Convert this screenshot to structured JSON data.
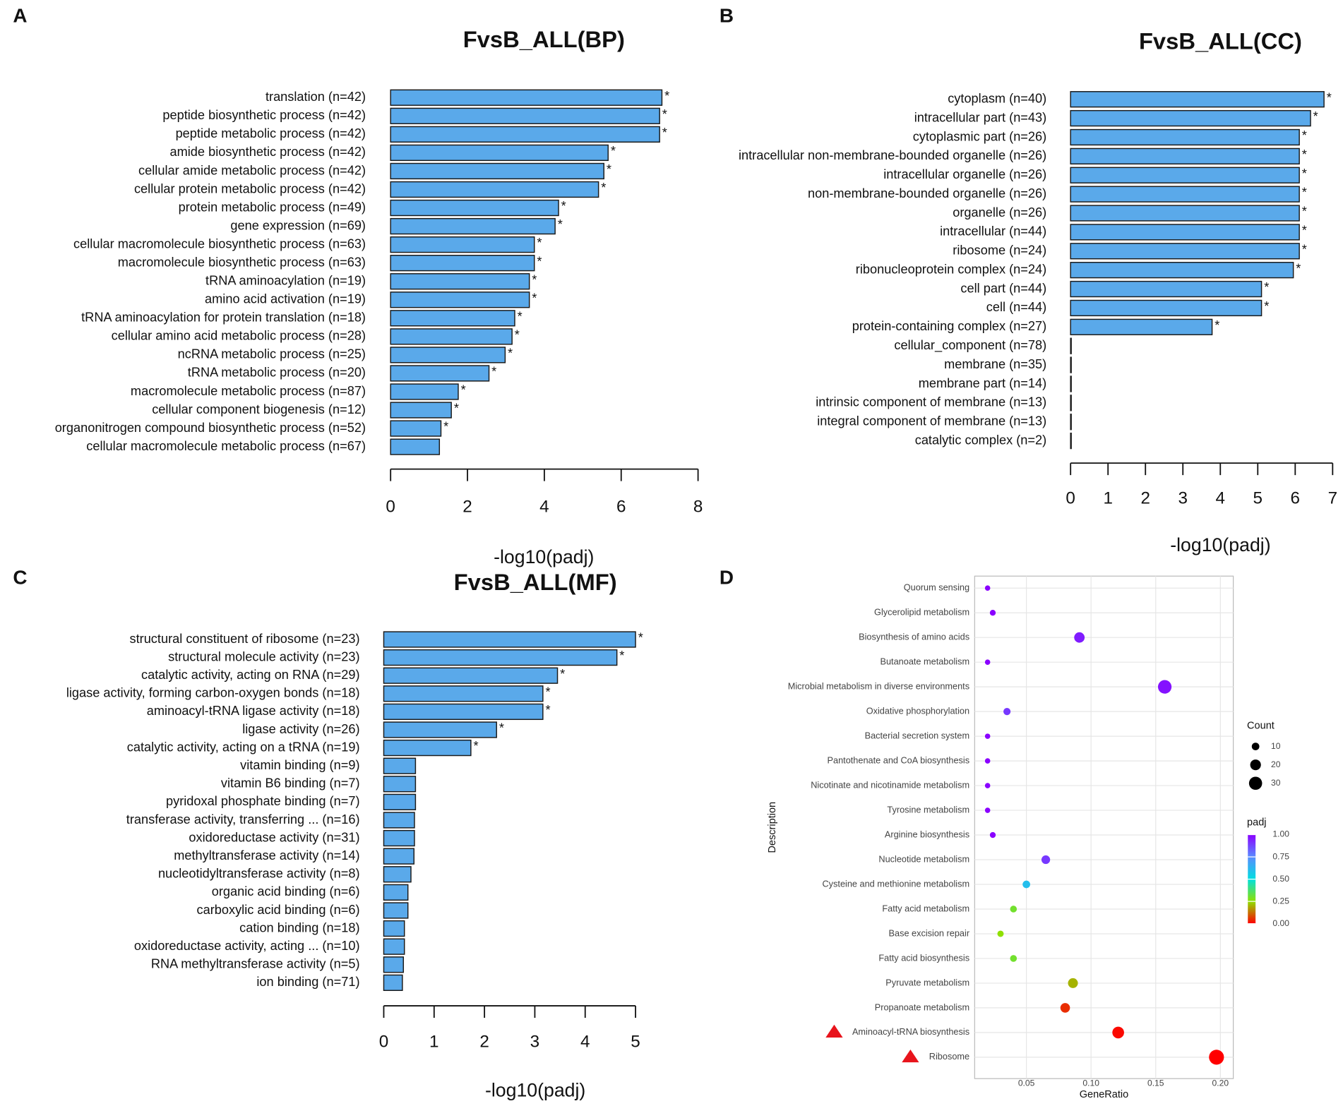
{
  "chart_data": [
    {
      "type": "bar",
      "orientation": "horizontal",
      "panel": "A",
      "title": "FvsB_ALL(BP)",
      "x_label": "-log10(padj)",
      "color": "#5aa9ea",
      "categories": [
        "translation (n=42)",
        "peptide biosynthetic process (n=42)",
        "peptide metabolic process (n=42)",
        "amide biosynthetic process (n=42)",
        "cellular amide metabolic process (n=42)",
        "cellular protein metabolic process (n=42)",
        "protein metabolic process (n=49)",
        "gene expression (n=69)",
        "cellular macromolecule biosynthetic process (n=63)",
        "macromolecule biosynthetic process (n=63)",
        "tRNA aminoacylation (n=19)",
        "amino acid activation (n=19)",
        "tRNA aminoacylation for protein translation (n=18)",
        "cellular amino acid metabolic process (n=28)",
        "ncRNA metabolic process (n=25)",
        "tRNA metabolic process (n=20)",
        "macromolecule metabolic process (n=87)",
        "cellular component biogenesis (n=12)",
        "organonitrogen compound biosynthetic process (n=52)",
        "cellular macromolecule metabolic process (n=67)"
      ],
      "values": [
        7.06,
        7.0,
        7.0,
        5.66,
        5.55,
        5.41,
        4.37,
        4.28,
        3.74,
        3.74,
        3.61,
        3.61,
        3.23,
        3.16,
        2.98,
        2.56,
        1.76,
        1.58,
        1.31,
        1.27
      ],
      "significance": [
        "*",
        "*",
        "*",
        "*",
        "*",
        "*",
        "*",
        "*",
        "*",
        "*",
        "*",
        "*",
        "*",
        "*",
        "*",
        "*",
        "*",
        "*",
        "*",
        null
      ],
      "xlim": [
        0,
        8
      ],
      "xticks": [
        0,
        2,
        4,
        6,
        8
      ]
    },
    {
      "type": "bar",
      "orientation": "horizontal",
      "panel": "B",
      "title": "FvsB_ALL(CC)",
      "x_label": "-log10(padj)",
      "color": "#5aa9ea",
      "categories": [
        "cytoplasm (n=40)",
        "intracellular part (n=43)",
        "cytoplasmic part (n=26)",
        "intracellular non-membrane-bounded organelle (n=26)",
        "intracellular organelle (n=26)",
        "non-membrane-bounded organelle (n=26)",
        "organelle (n=26)",
        "intracellular (n=44)",
        "ribosome (n=24)",
        "ribonucleoprotein complex (n=24)",
        "cell part (n=44)",
        "cell (n=44)",
        "protein-containing complex (n=27)",
        "cellular_component (n=78)",
        "membrane (n=35)",
        "membrane part (n=14)",
        "intrinsic component of membrane (n=13)",
        "integral component of membrane (n=13)",
        "catalytic complex (n=2)"
      ],
      "values": [
        6.77,
        6.41,
        6.11,
        6.11,
        6.11,
        6.11,
        6.11,
        6.11,
        6.11,
        5.95,
        5.1,
        5.1,
        3.78,
        0,
        0,
        0,
        0,
        0,
        0
      ],
      "significance": [
        "*",
        "*",
        "*",
        "*",
        "*",
        "*",
        "*",
        "*",
        "*",
        "*",
        "*",
        "*",
        "*",
        null,
        null,
        null,
        null,
        null,
        null
      ],
      "xlim": [
        0,
        7
      ],
      "xticks": [
        0,
        1,
        2,
        3,
        4,
        5,
        6,
        7
      ]
    },
    {
      "type": "bar",
      "orientation": "horizontal",
      "panel": "C",
      "title": "FvsB_ALL(MF)",
      "x_label": "-log10(padj)",
      "color": "#5aa9ea",
      "categories": [
        "structural constituent of ribosome (n=23)",
        "structural molecule activity (n=23)",
        "catalytic activity, acting on RNA (n=29)",
        "ligase activity, forming carbon-oxygen bonds (n=18)",
        "aminoacyl-tRNA ligase activity (n=18)",
        "ligase activity (n=26)",
        "catalytic activity, acting on a tRNA (n=19)",
        "vitamin binding (n=9)",
        "vitamin B6 binding (n=7)",
        "pyridoxal phosphate binding (n=7)",
        "transferase activity, transferring ... (n=16)",
        "oxidoreductase activity (n=31)",
        "methyltransferase activity (n=14)",
        "nucleotidyltransferase activity (n=8)",
        "organic acid binding (n=6)",
        "carboxylic acid binding (n=6)",
        "cation binding (n=18)",
        "oxidoreductase activity, acting ... (n=10)",
        "RNA methyltransferase activity (n=5)",
        "ion binding (n=71)"
      ],
      "values": [
        5.0,
        4.63,
        3.45,
        3.16,
        3.16,
        2.24,
        1.73,
        0.63,
        0.63,
        0.63,
        0.61,
        0.61,
        0.6,
        0.54,
        0.48,
        0.48,
        0.41,
        0.41,
        0.39,
        0.37
      ],
      "significance": [
        "*",
        "*",
        "*",
        "*",
        "*",
        "*",
        "*",
        null,
        null,
        null,
        null,
        null,
        null,
        null,
        null,
        null,
        null,
        null,
        null,
        null
      ],
      "xlim": [
        0,
        5
      ],
      "xticks": [
        0,
        1,
        2,
        3,
        4,
        5
      ]
    },
    {
      "type": "scatter",
      "panel": "D",
      "x_label": "GeneRatio",
      "y_label": "Description",
      "size_legend_title": "Count",
      "color_legend_title": "padj",
      "categories": [
        "Quorum sensing",
        "Glycerolipid metabolism",
        "Biosynthesis of amino acids",
        "Butanoate metabolism",
        "Microbial metabolism in diverse environments",
        "Oxidative phosphorylation",
        "Bacterial secretion system",
        "Pantothenate and CoA biosynthesis",
        "Nicotinate and nicotinamide metabolism",
        "Tyrosine metabolism",
        "Arginine biosynthesis",
        "Nucleotide metabolism",
        "Cysteine and methionine metabolism",
        "Fatty acid metabolism",
        "Base excision repair",
        "Fatty acid biosynthesis",
        "Pyruvate metabolism",
        "Propanoate metabolism",
        "Aminoacyl-tRNA biosynthesis",
        "Ribosome"
      ],
      "x": [
        0.02,
        0.024,
        0.091,
        0.02,
        0.157,
        0.035,
        0.02,
        0.02,
        0.02,
        0.02,
        0.024,
        0.065,
        0.05,
        0.04,
        0.03,
        0.04,
        0.086,
        0.08,
        0.121,
        0.197
      ],
      "count": [
        5,
        6,
        19,
        5,
        32,
        9,
        5,
        5,
        5,
        5,
        6,
        13,
        10,
        8,
        7,
        8,
        17,
        16,
        24,
        39
      ],
      "padj": [
        1.0,
        1.0,
        0.95,
        1.0,
        0.97,
        0.9,
        1.0,
        1.0,
        1.0,
        1.0,
        1.0,
        0.9,
        0.6,
        0.3,
        0.25,
        0.3,
        0.2,
        0.05,
        0.01,
        0.0
      ],
      "xlim": [
        0.01,
        0.21
      ],
      "xticks": [
        {
          "value": 0.05,
          "label": "0.05"
        },
        {
          "value": 0.1,
          "label": "0.10"
        },
        {
          "value": 0.15,
          "label": "0.15"
        },
        {
          "value": 0.2,
          "label": "0.20"
        }
      ],
      "size_legend": [
        10,
        20,
        30
      ],
      "color_ticks": [
        {
          "value": 1,
          "label": "1.00"
        },
        {
          "value": 0.75,
          "label": "0.75"
        },
        {
          "value": 0.5,
          "label": "0.50"
        },
        {
          "value": 0.25,
          "label": "0.25"
        },
        {
          "value": 0,
          "label": "0.00"
        }
      ],
      "colorscale": [
        [
          0,
          "#ff0000"
        ],
        [
          0.25,
          "#8fe000"
        ],
        [
          0.5,
          "#00e0e0"
        ],
        [
          0.75,
          "#5a8cff"
        ],
        [
          1,
          "#8a00ff"
        ]
      ],
      "grid": true
    }
  ]
}
